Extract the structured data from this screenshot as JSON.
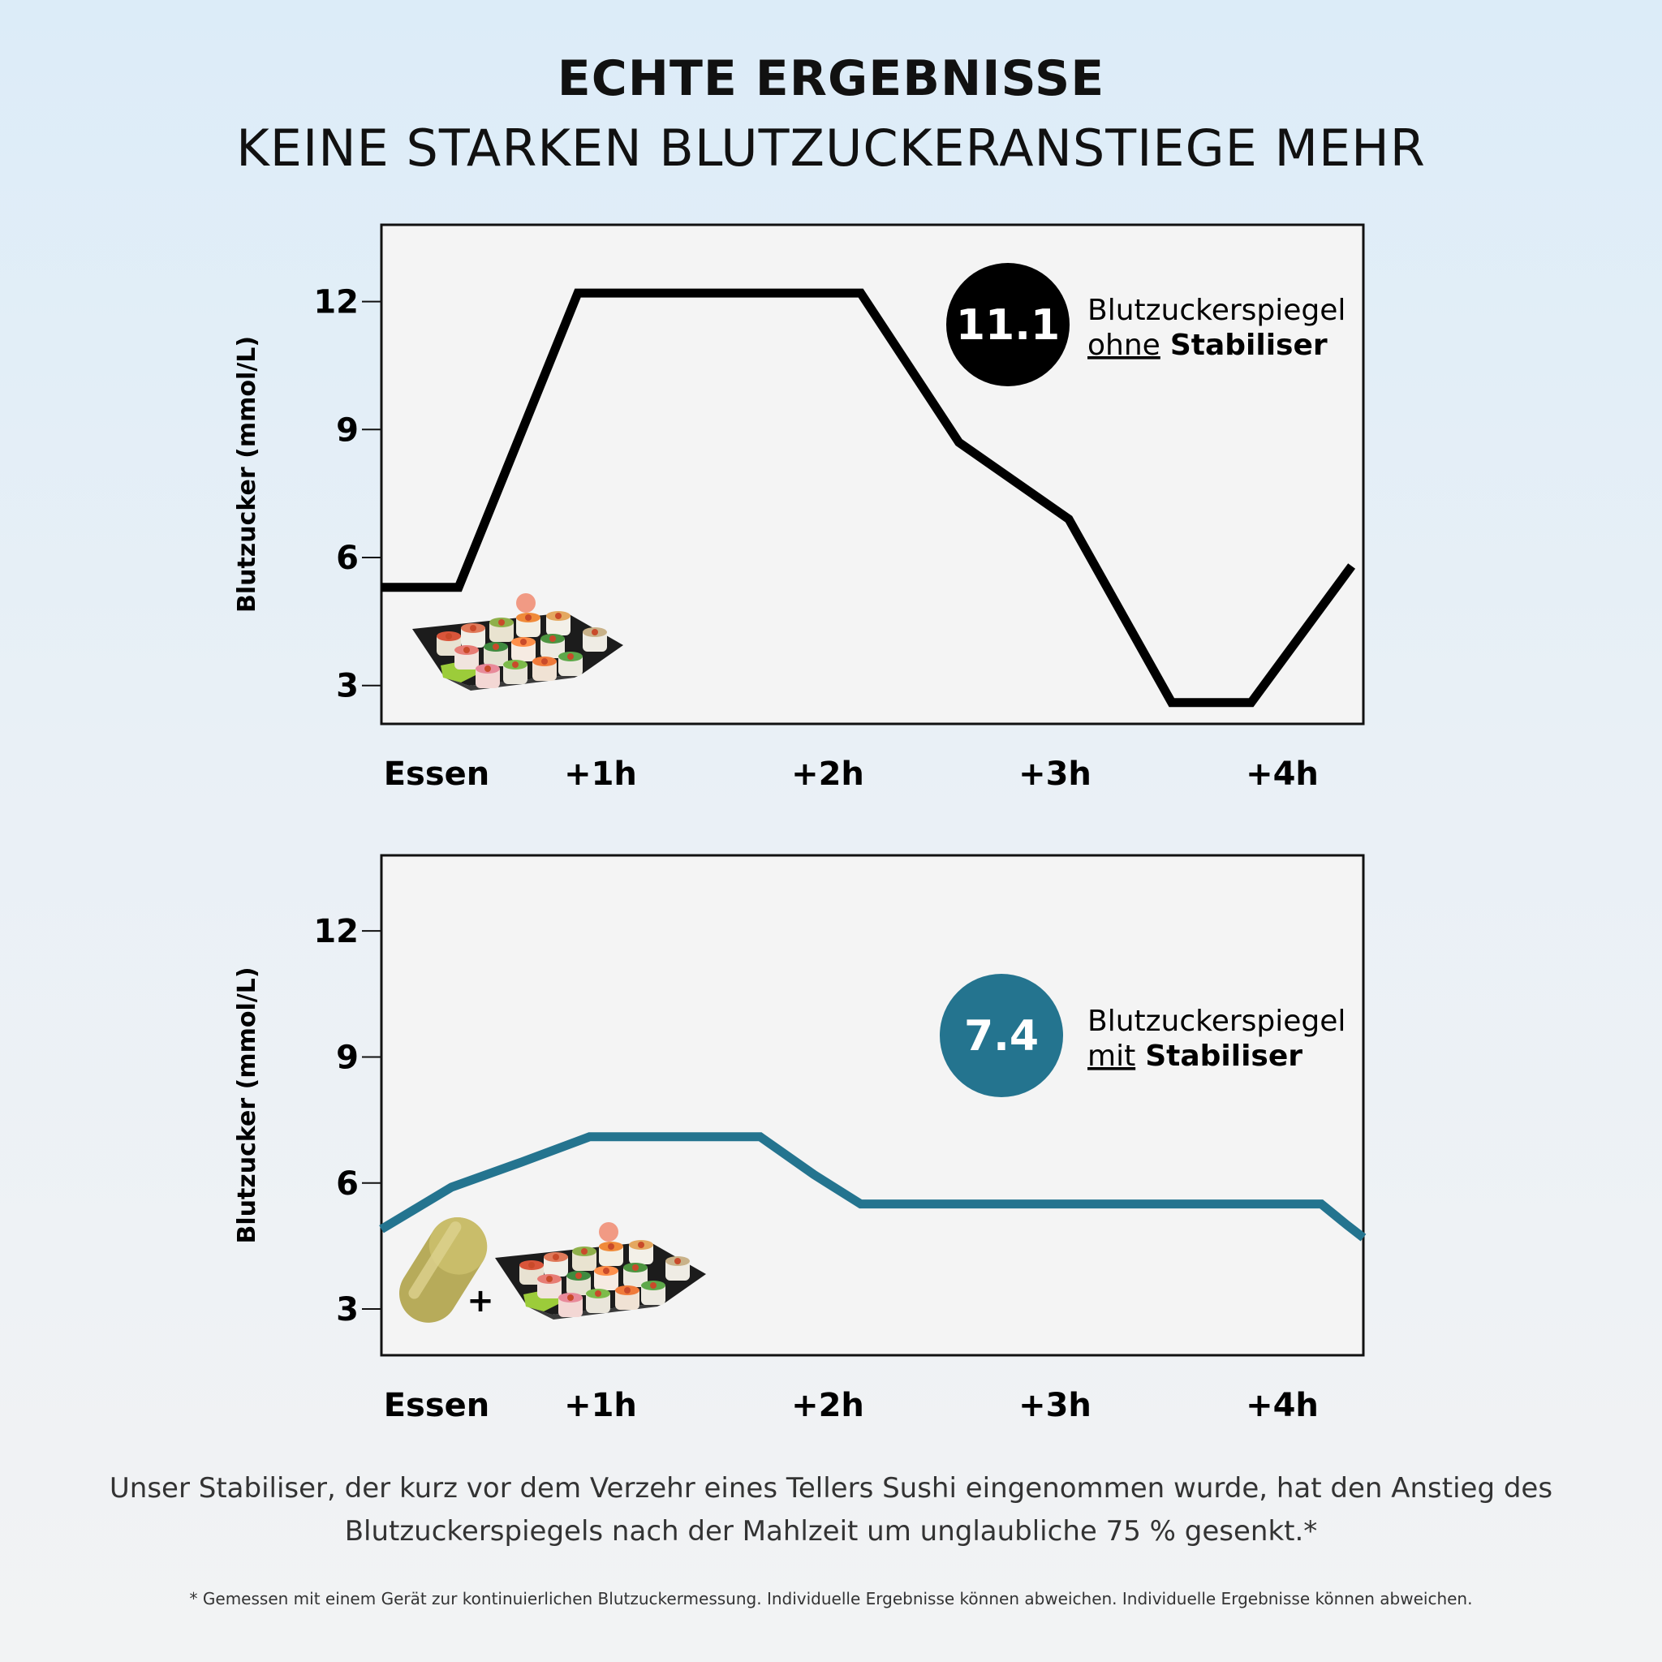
{
  "header": {
    "title": "ECHTE ERGEBNISSE",
    "subtitle": "KEINE STARKEN BLUTZUCKERANSTIEGE MEHR"
  },
  "colors": {
    "line_without": "#000000",
    "line_with": "#24748f",
    "badge_without": "#000000",
    "badge_with": "#24748f",
    "panel_bg": "#f4f4f4"
  },
  "chart_data": [
    {
      "type": "line",
      "ylabel": "Blutzucker (mmol/L)",
      "x_ticks": [
        "Essen",
        "+1h",
        "+2h",
        "+3h",
        "+4h"
      ],
      "y_ticks": [
        3,
        6,
        9,
        12
      ],
      "xlim": [
        0,
        4.2
      ],
      "ylim": [
        2.1,
        13.8
      ],
      "grid": false,
      "series": [
        {
          "color": "#000000",
          "x": [
            0,
            0.33,
            0.84,
            2.05,
            2.47,
            2.94,
            3.38,
            3.72,
            4.15
          ],
          "y": [
            5.3,
            5.3,
            12.2,
            12.2,
            8.7,
            6.9,
            2.6,
            2.6,
            5.8
          ]
        }
      ],
      "badge": {
        "value": "11.1",
        "label_line1": "Blutzuckerspiegel",
        "label_underlined": "ohne",
        "label_bold": "Stabiliser"
      },
      "image_desc": "sushi-plate"
    },
    {
      "type": "line",
      "ylabel": "Blutzucker (mmol/L)",
      "x_ticks": [
        "Essen",
        "+1h",
        "+2h",
        "+3h",
        "+4h"
      ],
      "y_ticks": [
        3,
        6,
        9,
        12
      ],
      "xlim": [
        0,
        4.2
      ],
      "ylim": [
        1.9,
        13.8
      ],
      "grid": false,
      "series": [
        {
          "color": "#24748f",
          "x": [
            0,
            0.3,
            0.6,
            0.89,
            1.62,
            1.85,
            2.05,
            4.02,
            4.13,
            4.2
          ],
          "y": [
            4.9,
            5.9,
            6.5,
            7.1,
            7.1,
            6.2,
            5.5,
            5.5,
            5.0,
            4.7
          ]
        }
      ],
      "badge": {
        "value": "7.4",
        "label_line1": "Blutzuckerspiegel",
        "label_underlined": "mit",
        "label_bold": "Stabiliser"
      },
      "plus_sign": "+",
      "image_desc": "capsule-and-sushi-plate"
    }
  ],
  "footer": {
    "line1": "Unser Stabiliser, der kurz vor dem Verzehr eines Tellers Sushi eingenommen wurde, hat den Anstieg des",
    "line2": "Blutzuckerspiegels nach der Mahlzeit um unglaubliche 75 % gesenkt.*",
    "footnote": "* Gemessen mit einem Gerät zur kontinuierlichen Blutzuckermessung. Individuelle Ergebnisse können abweichen. Individuelle Ergebnisse können abweichen."
  }
}
